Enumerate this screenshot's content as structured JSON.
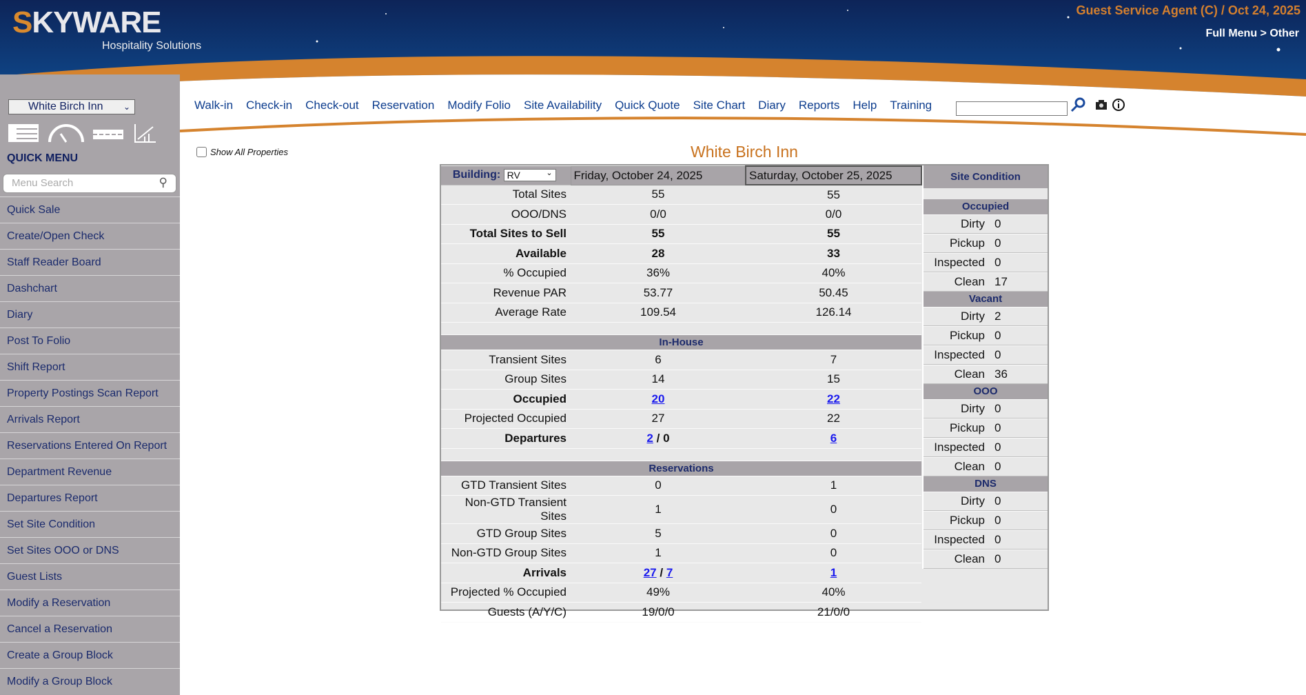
{
  "header": {
    "logo_text": "SKYWARE",
    "logo_sub": "Hospitality Solutions",
    "agent": "Guest Service Agent (C) / Oct 24, 2025",
    "breadcrumb": "Full Menu > Other"
  },
  "sidebar": {
    "property": "White Birch Inn",
    "quick_menu": "QUICK MENU",
    "search_placeholder": "Menu Search",
    "items": [
      "Quick Sale",
      "Create/Open Check",
      "Staff Reader Board",
      "Dashchart",
      "Diary",
      "Post To Folio",
      "Shift Report",
      "Property Postings Scan Report",
      "Arrivals Report",
      "Reservations Entered On Report",
      "Department Revenue",
      "Departures Report",
      "Set Site Condition",
      "Set Sites OOO or DNS",
      "Guest Lists",
      "Modify a Reservation",
      "Cancel a Reservation",
      "Create a Group Block",
      "Modify a Group Block"
    ]
  },
  "nav": [
    "Walk-in",
    "Check-in",
    "Check-out",
    "Reservation",
    "Modify Folio",
    "Site Availability",
    "Quick Quote",
    "Site Chart",
    "Diary",
    "Reports",
    "Help",
    "Training"
  ],
  "search": {
    "value": ""
  },
  "show_all": "Show All Properties",
  "title": "White Birch Inn",
  "grid": {
    "building_label": "Building:",
    "building": "RV",
    "date1": "Friday, October 24, 2025",
    "date2": "Saturday, October 25, 2025",
    "rows1": [
      [
        "Total Sites",
        "55",
        "55"
      ],
      [
        "OOO/DNS",
        "0/0",
        "0/0"
      ],
      [
        "Total Sites to Sell",
        "55",
        "55"
      ],
      [
        "Available",
        "28",
        "33"
      ],
      [
        "% Occupied",
        "36%",
        "40%"
      ],
      [
        "Revenue PAR",
        "53.77",
        "50.45"
      ],
      [
        "Average Rate",
        "109.54",
        "126.14"
      ]
    ],
    "inhouse": "In-House",
    "rows2": [
      [
        "Transient Sites",
        "6",
        "7"
      ],
      [
        "Group Sites",
        "14",
        "15"
      ],
      [
        "Occupied",
        "20",
        "22"
      ],
      [
        "Projected Occupied",
        "27",
        "22"
      ]
    ],
    "departures": {
      "label": "Departures",
      "d1a": "2",
      "d1b": "0",
      "d2": "6"
    },
    "reservations": "Reservations",
    "rows3": [
      [
        "GTD Transient Sites",
        "0",
        "1"
      ],
      [
        "Non-GTD Transient Sites",
        "1",
        "0"
      ],
      [
        "GTD Group Sites",
        "5",
        "0"
      ],
      [
        "Non-GTD Group Sites",
        "1",
        "0"
      ]
    ],
    "arrivals": {
      "label": "Arrivals",
      "d1a": "27",
      "d1b": "7",
      "d2": "1"
    },
    "rows4": [
      [
        "Projected % Occupied",
        "49%",
        "40%"
      ],
      [
        "Guests (A/Y/C)",
        "19/0/0",
        "21/0/0"
      ]
    ],
    "slash": "/"
  },
  "site_condition": {
    "title": "Site Condition",
    "groups": [
      {
        "name": "Occupied",
        "items": [
          [
            "Dirty",
            "0"
          ],
          [
            "Pickup",
            "0"
          ],
          [
            "Inspected",
            "0"
          ],
          [
            "Clean",
            "17"
          ]
        ]
      },
      {
        "name": "Vacant",
        "items": [
          [
            "Dirty",
            "2"
          ],
          [
            "Pickup",
            "0"
          ],
          [
            "Inspected",
            "0"
          ],
          [
            "Clean",
            "36"
          ]
        ]
      },
      {
        "name": "OOO",
        "items": [
          [
            "Dirty",
            "0"
          ],
          [
            "Pickup",
            "0"
          ],
          [
            "Inspected",
            "0"
          ],
          [
            "Clean",
            "0"
          ]
        ]
      },
      {
        "name": "DNS",
        "items": [
          [
            "Dirty",
            "0"
          ],
          [
            "Pickup",
            "0"
          ],
          [
            "Inspected",
            "0"
          ],
          [
            "Clean",
            "0"
          ]
        ]
      }
    ]
  }
}
